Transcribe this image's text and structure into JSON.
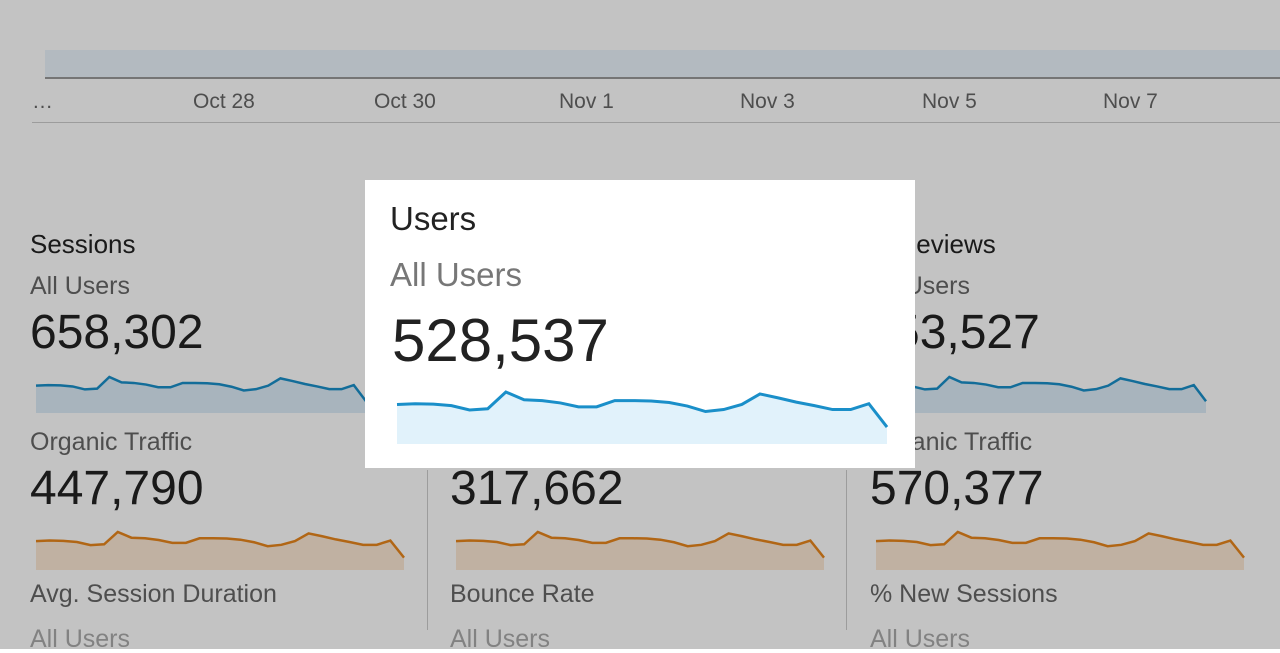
{
  "axis": {
    "labels": [
      "…",
      "Oct 28",
      "Oct 30",
      "Nov 1",
      "Nov 3",
      "Nov 5",
      "Nov 7"
    ]
  },
  "columns": [
    {
      "title": "Sessions",
      "segment": "All Users",
      "value": "658,302",
      "metric2": "Organic Traffic",
      "value2": "447,790",
      "metric3": "Avg. Session Duration",
      "segment3": "All Users"
    },
    {
      "value2": "317,662",
      "metric3": "Bounce Rate",
      "segment3": "All Users"
    },
    {
      "title": "Pageviews",
      "segment": "All Users",
      "value": "53,527",
      "metric2": "Organic Traffic",
      "value2": "570,377",
      "metric3": "% New Sessions",
      "segment3": "All Users"
    }
  ],
  "highlight": {
    "title": "Users",
    "segment": "All Users",
    "value": "528,537"
  }
}
